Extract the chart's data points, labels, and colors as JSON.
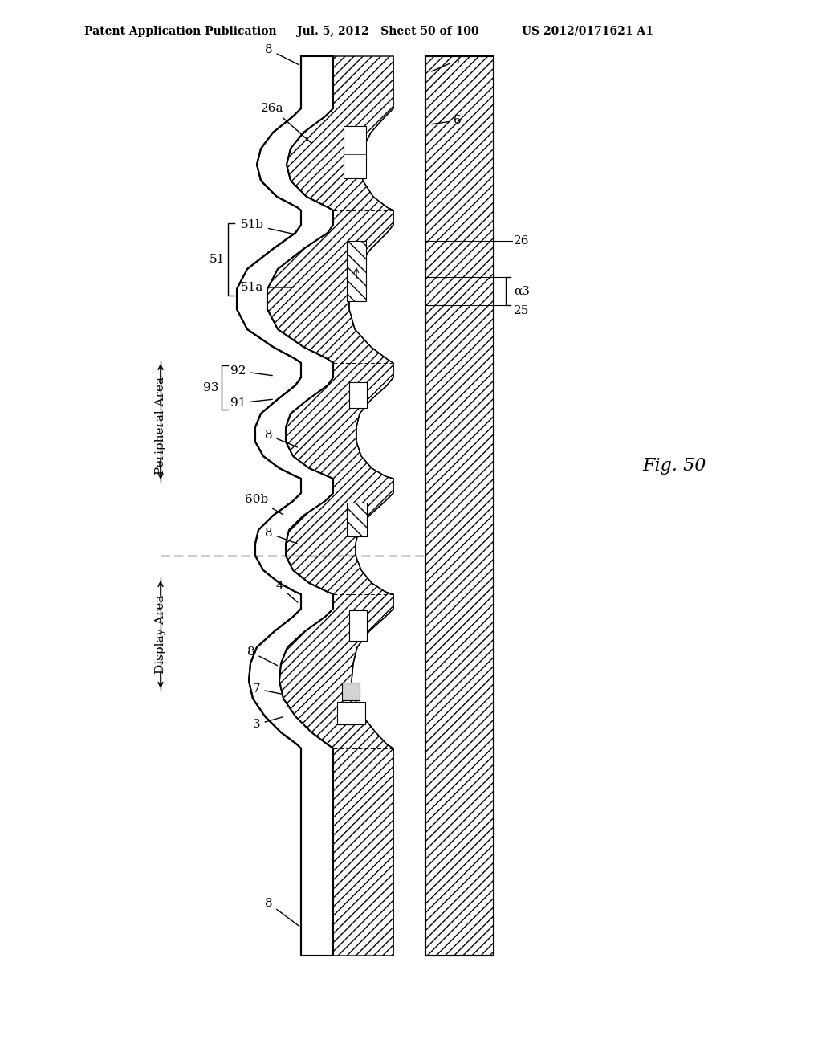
{
  "header_left": "Patent Application Publication",
  "header_mid": "Jul. 5, 2012   Sheet 50 of 100",
  "header_right": "US 2012/0171621 A1",
  "fig_label": "Fig. 50",
  "background": "#ffffff",
  "label_8_top": "8",
  "label_26a": "26a",
  "label_51": "51",
  "label_51a": "51a",
  "label_51b": "51b",
  "label_93": "93",
  "label_92": "92",
  "label_91": "91",
  "label_8_mid": "8",
  "label_60b": "60b",
  "label_8_lower": "8",
  "label_4": "4",
  "label_8_disp": "8",
  "label_7": "7",
  "label_3": "3",
  "label_8_bot": "8",
  "label_1": "1",
  "label_6": "6",
  "label_26": "26",
  "label_a3": "α3",
  "label_25": "25",
  "area_peripheral": "Peripheral Area",
  "area_display": "Display Area"
}
